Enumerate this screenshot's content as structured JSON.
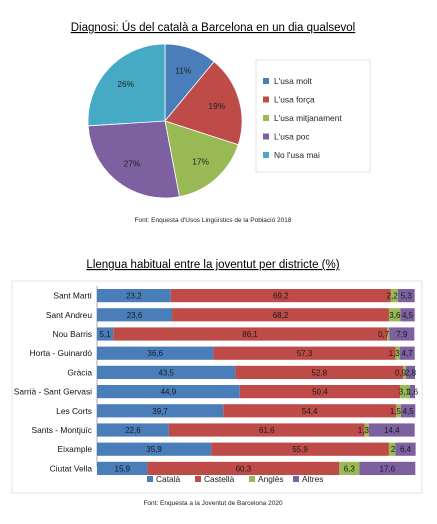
{
  "colors": {
    "blue": "#4a7ebb",
    "red": "#be4b48",
    "green": "#98b954",
    "purple": "#7d60a0",
    "teal": "#46aac5"
  },
  "chart_data": [
    {
      "type": "pie",
      "title": "Diagnosi: Ús del català a Barcelona en un dia qualsevol",
      "source": "Font: Enquesta d'Usos Lingüístics de la Població 2018",
      "legend_position": "right",
      "slices": [
        {
          "name": "L'usa molt",
          "value": 11,
          "label": "11%",
          "color": "#4a7ebb"
        },
        {
          "name": "L'usa força",
          "value": 19,
          "label": "19%",
          "color": "#be4b48"
        },
        {
          "name": "L'usa mitjanament",
          "value": 17,
          "label": "17%",
          "color": "#98b954"
        },
        {
          "name": "L'usa poc",
          "value": 27,
          "label": "27%",
          "color": "#7d60a0"
        },
        {
          "name": "No l'usa mai",
          "value": 26,
          "label": "26%",
          "color": "#46aac5"
        }
      ]
    },
    {
      "type": "bar",
      "orientation": "horizontal",
      "stacked": true,
      "title": "Llengua habitual entre la joventut per districte (%)",
      "source": "Font: Enquesta a la Joventut de Barcelona 2020",
      "legend_position": "bottom",
      "xlim": [
        0,
        100
      ],
      "categories": [
        "Sant Martí",
        "Sant Andreu",
        "Nou Barris",
        "Horta - Guinardó",
        "Gràcia",
        "Sarrià - Sant Gervasi",
        "Les Corts",
        "Sants - Montjuïc",
        "Eixample",
        "Ciutat Vella"
      ],
      "series": [
        {
          "name": "Català",
          "color": "#4a7ebb",
          "values": [
            23.2,
            23.6,
            5.1,
            36.6,
            43.5,
            44.9,
            39.7,
            22.6,
            35.9,
            15.9
          ],
          "labels": [
            "23,2",
            "23,6",
            "5,1",
            "36,6",
            "43,5",
            "44,9",
            "39,7",
            "22,6",
            "35,9",
            "15,9"
          ]
        },
        {
          "name": "Castellà",
          "color": "#be4b48",
          "values": [
            69.2,
            68.2,
            86.1,
            57.3,
            52.8,
            50.4,
            54.4,
            61.6,
            55.9,
            60.3
          ],
          "labels": [
            "69,2",
            "68,2",
            "86,1",
            "57,3",
            "52,8",
            "50,4",
            "54,4",
            "61,6",
            "55,9",
            "60,3"
          ]
        },
        {
          "name": "Anglès",
          "color": "#98b954",
          "values": [
            2.2,
            3.6,
            0.7,
            1.3,
            0.9,
            3.1,
            1.5,
            1.3,
            2.0,
            6.3
          ],
          "labels": [
            "2,2",
            "3,6",
            "0,7",
            "1,3",
            "0,9",
            "3,1",
            "1,5",
            "1,3",
            "2",
            "6,3"
          ]
        },
        {
          "name": "Altres",
          "color": "#7d60a0",
          "values": [
            5.3,
            4.5,
            7.9,
            4.7,
            2.8,
            1.6,
            4.5,
            14.4,
            6.4,
            17.6
          ],
          "labels": [
            "5,3",
            "4,5",
            "7,9",
            "4,7",
            "2,8",
            "1,6",
            "4,5",
            "14,4",
            "6,4",
            "17,6"
          ]
        }
      ]
    }
  ]
}
